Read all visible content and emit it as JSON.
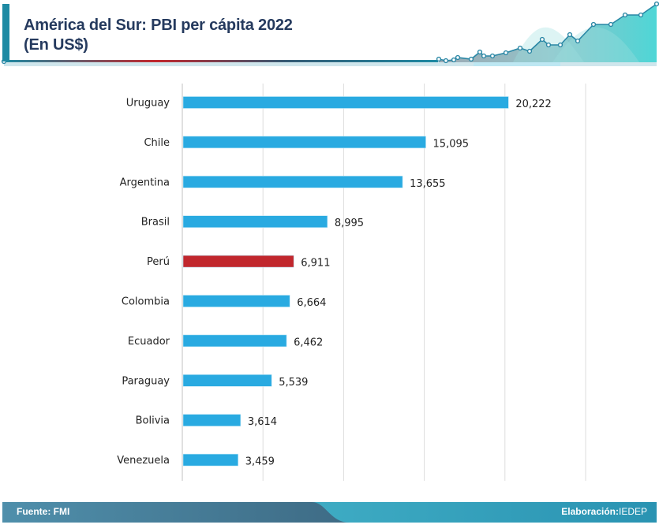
{
  "header": {
    "title_line1": "América del  Sur: PBI per cápita 2022",
    "title_line2": "(En US$)",
    "decoration": "rising-line-area-sparkline"
  },
  "footer": {
    "source_label": "Fuente: FMI",
    "credit_prefix": "Elaboración:",
    "credit_value": "IEDEP"
  },
  "colors": {
    "bar_default": "#29aae1",
    "bar_highlight": "#c1272d",
    "title": "#253a5e",
    "accent": "#1e8aa3",
    "grid": "#dddddd"
  },
  "chart_data": {
    "type": "bar",
    "orientation": "horizontal",
    "title": "América del  Sur: PBI per cápita 2022 (En US$)",
    "xlabel": "",
    "ylabel": "",
    "categories": [
      "Uruguay",
      "Chile",
      "Argentina",
      "Brasil",
      "Perú",
      "Colombia",
      "Ecuador",
      "Paraguay",
      "Bolivia",
      "Venezuela"
    ],
    "values": [
      20222,
      15095,
      13655,
      8995,
      6911,
      6664,
      6462,
      5539,
      3614,
      3459
    ],
    "value_labels": [
      "20,222",
      "15,095",
      "13,655",
      "8,995",
      "6,911",
      "6,664",
      "6,462",
      "5,539",
      "3,614",
      "3,459"
    ],
    "highlight": "Perú",
    "xlim": [
      0,
      25000
    ],
    "grid_step": 5000,
    "grid": true,
    "x_tick_labels_visible": false,
    "legend": "none"
  }
}
